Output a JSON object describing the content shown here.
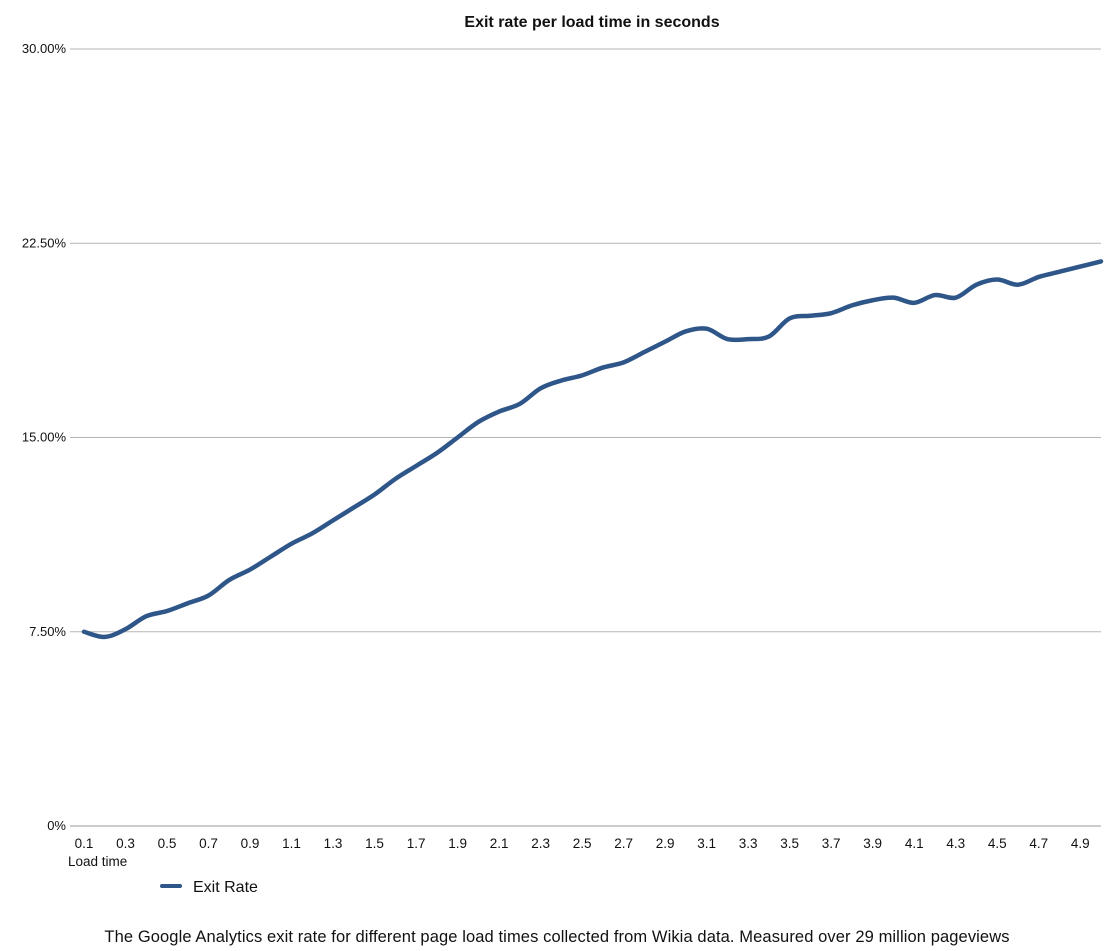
{
  "chart_data": {
    "type": "line",
    "title": "Exit rate per load time in seconds",
    "xlabel": "Load time",
    "ylabel": "",
    "ylim": [
      0,
      30
    ],
    "yticks": [
      "0%",
      "7.50%",
      "15.00%",
      "22.50%",
      "30.00%"
    ],
    "ytick_values": [
      0,
      7.5,
      15,
      22.5,
      30
    ],
    "xtick_labels": [
      "0.1",
      "0.3",
      "0.5",
      "0.7",
      "0.9",
      "1.1",
      "1.3",
      "1.5",
      "1.7",
      "1.9",
      "2.1",
      "2.3",
      "2.5",
      "2.7",
      "2.9",
      "3.1",
      "3.3",
      "3.5",
      "3.7",
      "3.9",
      "4.1",
      "4.3",
      "4.5",
      "4.7",
      "4.9"
    ],
    "x": [
      0.1,
      0.2,
      0.3,
      0.4,
      0.5,
      0.6,
      0.7,
      0.8,
      0.9,
      1.0,
      1.1,
      1.2,
      1.3,
      1.4,
      1.5,
      1.6,
      1.7,
      1.8,
      1.9,
      2.0,
      2.1,
      2.2,
      2.3,
      2.4,
      2.5,
      2.6,
      2.7,
      2.8,
      2.9,
      3.0,
      3.1,
      3.2,
      3.3,
      3.4,
      3.5,
      3.6,
      3.7,
      3.8,
      3.9,
      4.0,
      4.1,
      4.2,
      4.3,
      4.4,
      4.5,
      4.6,
      4.7,
      4.8,
      4.9,
      5.0
    ],
    "series": [
      {
        "name": "Exit Rate",
        "color": "#2f5689",
        "values": [
          7.5,
          7.3,
          7.6,
          8.1,
          8.3,
          8.6,
          8.9,
          9.5,
          9.9,
          10.4,
          10.9,
          11.3,
          11.8,
          12.3,
          12.8,
          13.4,
          13.9,
          14.4,
          15.0,
          15.6,
          16.0,
          16.3,
          16.9,
          17.2,
          17.4,
          17.7,
          17.9,
          18.3,
          18.7,
          19.1,
          19.2,
          18.8,
          18.8,
          18.9,
          19.6,
          19.7,
          19.8,
          20.1,
          20.3,
          20.4,
          20.2,
          20.5,
          20.4,
          20.9,
          21.1,
          20.9,
          21.2,
          21.4,
          21.6,
          21.8
        ]
      }
    ],
    "grid": true,
    "legend": "bottom-left"
  },
  "caption": "The Google Analytics exit rate for different page load times collected from Wikia data. Measured over 29 million pageviews"
}
